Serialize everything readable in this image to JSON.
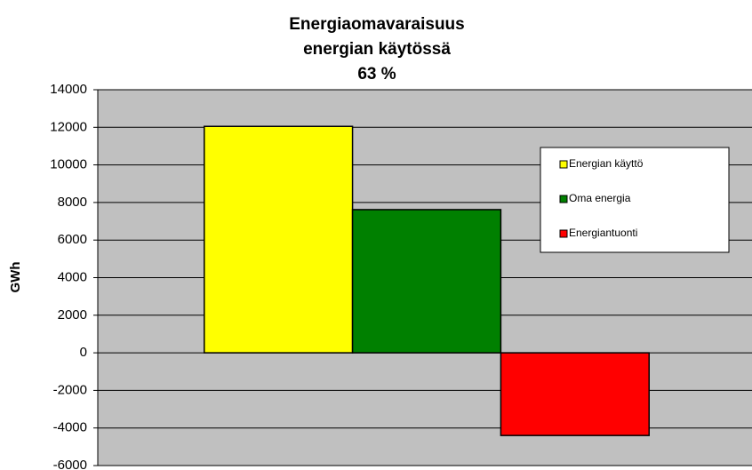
{
  "chart_data": {
    "type": "bar",
    "title": [
      "Energiaomavaraisuus",
      "energian käytössä",
      "63 %"
    ],
    "y_label": "GWh",
    "categories": [
      null
    ],
    "series": [
      {
        "name": "Energian käyttö",
        "color": "#ffff00",
        "values": [
          12050
        ]
      },
      {
        "name": "Oma energia",
        "color": "#008000",
        "values": [
          7620
        ]
      },
      {
        "name": "Energiantuonti",
        "color": "#ff0000",
        "values": [
          -4400
        ]
      }
    ],
    "ylim": [
      -6000,
      14000
    ],
    "yticks": [
      -6000,
      -4000,
      -2000,
      0,
      2000,
      4000,
      6000,
      8000,
      10000,
      12000,
      14000
    ],
    "grid": true,
    "plot_background": "#c0c0c0",
    "legend": "right"
  }
}
